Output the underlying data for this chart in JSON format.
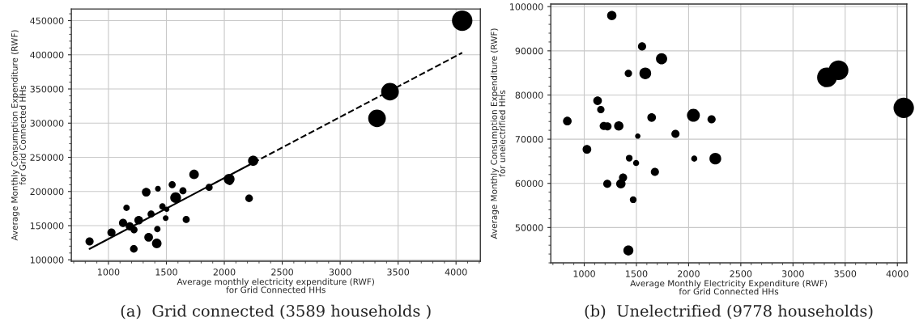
{
  "chart_data": [
    {
      "type": "bubble",
      "title": "(a)  Grid connected (3589 households )",
      "xlabel": "Average monthly electricity expenditure (RWF)\nfor Grid Connected HHs",
      "ylabel": "Average Monthly Consumption Expenditure (RWF)\nfor Grid Connected HHs",
      "xlim": [
        680,
        4210
      ],
      "xticks": [
        1000,
        1500,
        2000,
        2500,
        3000,
        3500,
        4000
      ],
      "ylim": [
        98000,
        467000
      ],
      "yticks": [
        100000,
        150000,
        200000,
        250000,
        300000,
        350000,
        400000,
        450000
      ],
      "grid": true,
      "legend": false,
      "series": [
        {
          "color": "#000000",
          "x": [
            837,
            1026,
            1156,
            1126,
            1184,
            1221,
            1219,
            1261,
            1326,
            1347,
            1368,
            1427,
            1422,
            1417,
            1466,
            1503,
            1494,
            1550,
            1580,
            1643,
            1671,
            1739,
            1869,
            2042,
            2047,
            2214,
            2249,
            3318,
            3430,
            4053
          ],
          "values": [
            127000,
            140000,
            176000,
            154000,
            149000,
            144000,
            116000,
            158000,
            199000,
            133000,
            167000,
            204000,
            145000,
            124000,
            178000,
            174000,
            161000,
            210000,
            191000,
            201000,
            159000,
            225000,
            206000,
            218000,
            214000,
            190000,
            245000,
            307000,
            346000,
            450000
          ],
          "sizes": [
            0.16,
            0.16,
            0.1,
            0.16,
            0.16,
            0.12,
            0.14,
            0.18,
            0.18,
            0.18,
            0.12,
            0.08,
            0.1,
            0.22,
            0.1,
            0.07,
            0.08,
            0.12,
            0.28,
            0.12,
            0.12,
            0.22,
            0.12,
            0.28,
            0.1,
            0.14,
            0.25,
            0.75,
            0.75,
            1
          ]
        },
        {
          "type": "line",
          "color": "#000000",
          "line_style": "solid",
          "x": [
            837,
            2250
          ],
          "values": [
            116000,
            242000
          ]
        },
        {
          "type": "line",
          "color": "#000000",
          "line_style": "dashed",
          "x": [
            2250,
            4053
          ],
          "values": [
            242000,
            403000
          ]
        }
      ]
    },
    {
      "type": "bubble",
      "title": "(b)  Unelectrified (9778 households)",
      "xlabel": "Average Monthly Electricity Expenditure (RWF)\nfor Grid Connected HHs",
      "ylabel": "Average Monthly Consumption Expenditure (RWF)\nfor unelectrified HHs",
      "xlim": [
        680,
        4090
      ],
      "xticks": [
        1000,
        1500,
        2000,
        2500,
        3000,
        3500,
        4000
      ],
      "ylim": [
        42000,
        100600
      ],
      "yticks": [
        50000,
        60000,
        70000,
        80000,
        90000,
        100000
      ],
      "grid": true,
      "legend": false,
      "series": [
        {
          "color": "#000000",
          "x": [
            838,
            1026,
            1128,
            1159,
            1187,
            1223,
            1221,
            1264,
            1331,
            1351,
            1372,
            1423,
            1431,
            1423,
            1469,
            1513,
            1497,
            1554,
            1585,
            1646,
            1677,
            1741,
            1874,
            2046,
            2054,
            2220,
            2256,
            3326,
            3436,
            4061
          ],
          "values": [
            74100,
            67700,
            78700,
            76700,
            73000,
            72900,
            59900,
            98000,
            73000,
            59900,
            61300,
            84900,
            65700,
            44800,
            56300,
            70700,
            64600,
            91000,
            84900,
            74900,
            62600,
            88200,
            71200,
            75400,
            65600,
            74500,
            65600,
            84000,
            85600,
            77100
          ],
          "sizes": [
            0.18,
            0.18,
            0.18,
            0.13,
            0.16,
            0.16,
            0.16,
            0.21,
            0.21,
            0.21,
            0.16,
            0.13,
            0.11,
            0.24,
            0.11,
            0.07,
            0.09,
            0.16,
            0.33,
            0.18,
            0.16,
            0.3,
            0.16,
            0.4,
            0.09,
            0.16,
            0.33,
            0.94,
            0.94,
            1
          ]
        }
      ]
    }
  ]
}
